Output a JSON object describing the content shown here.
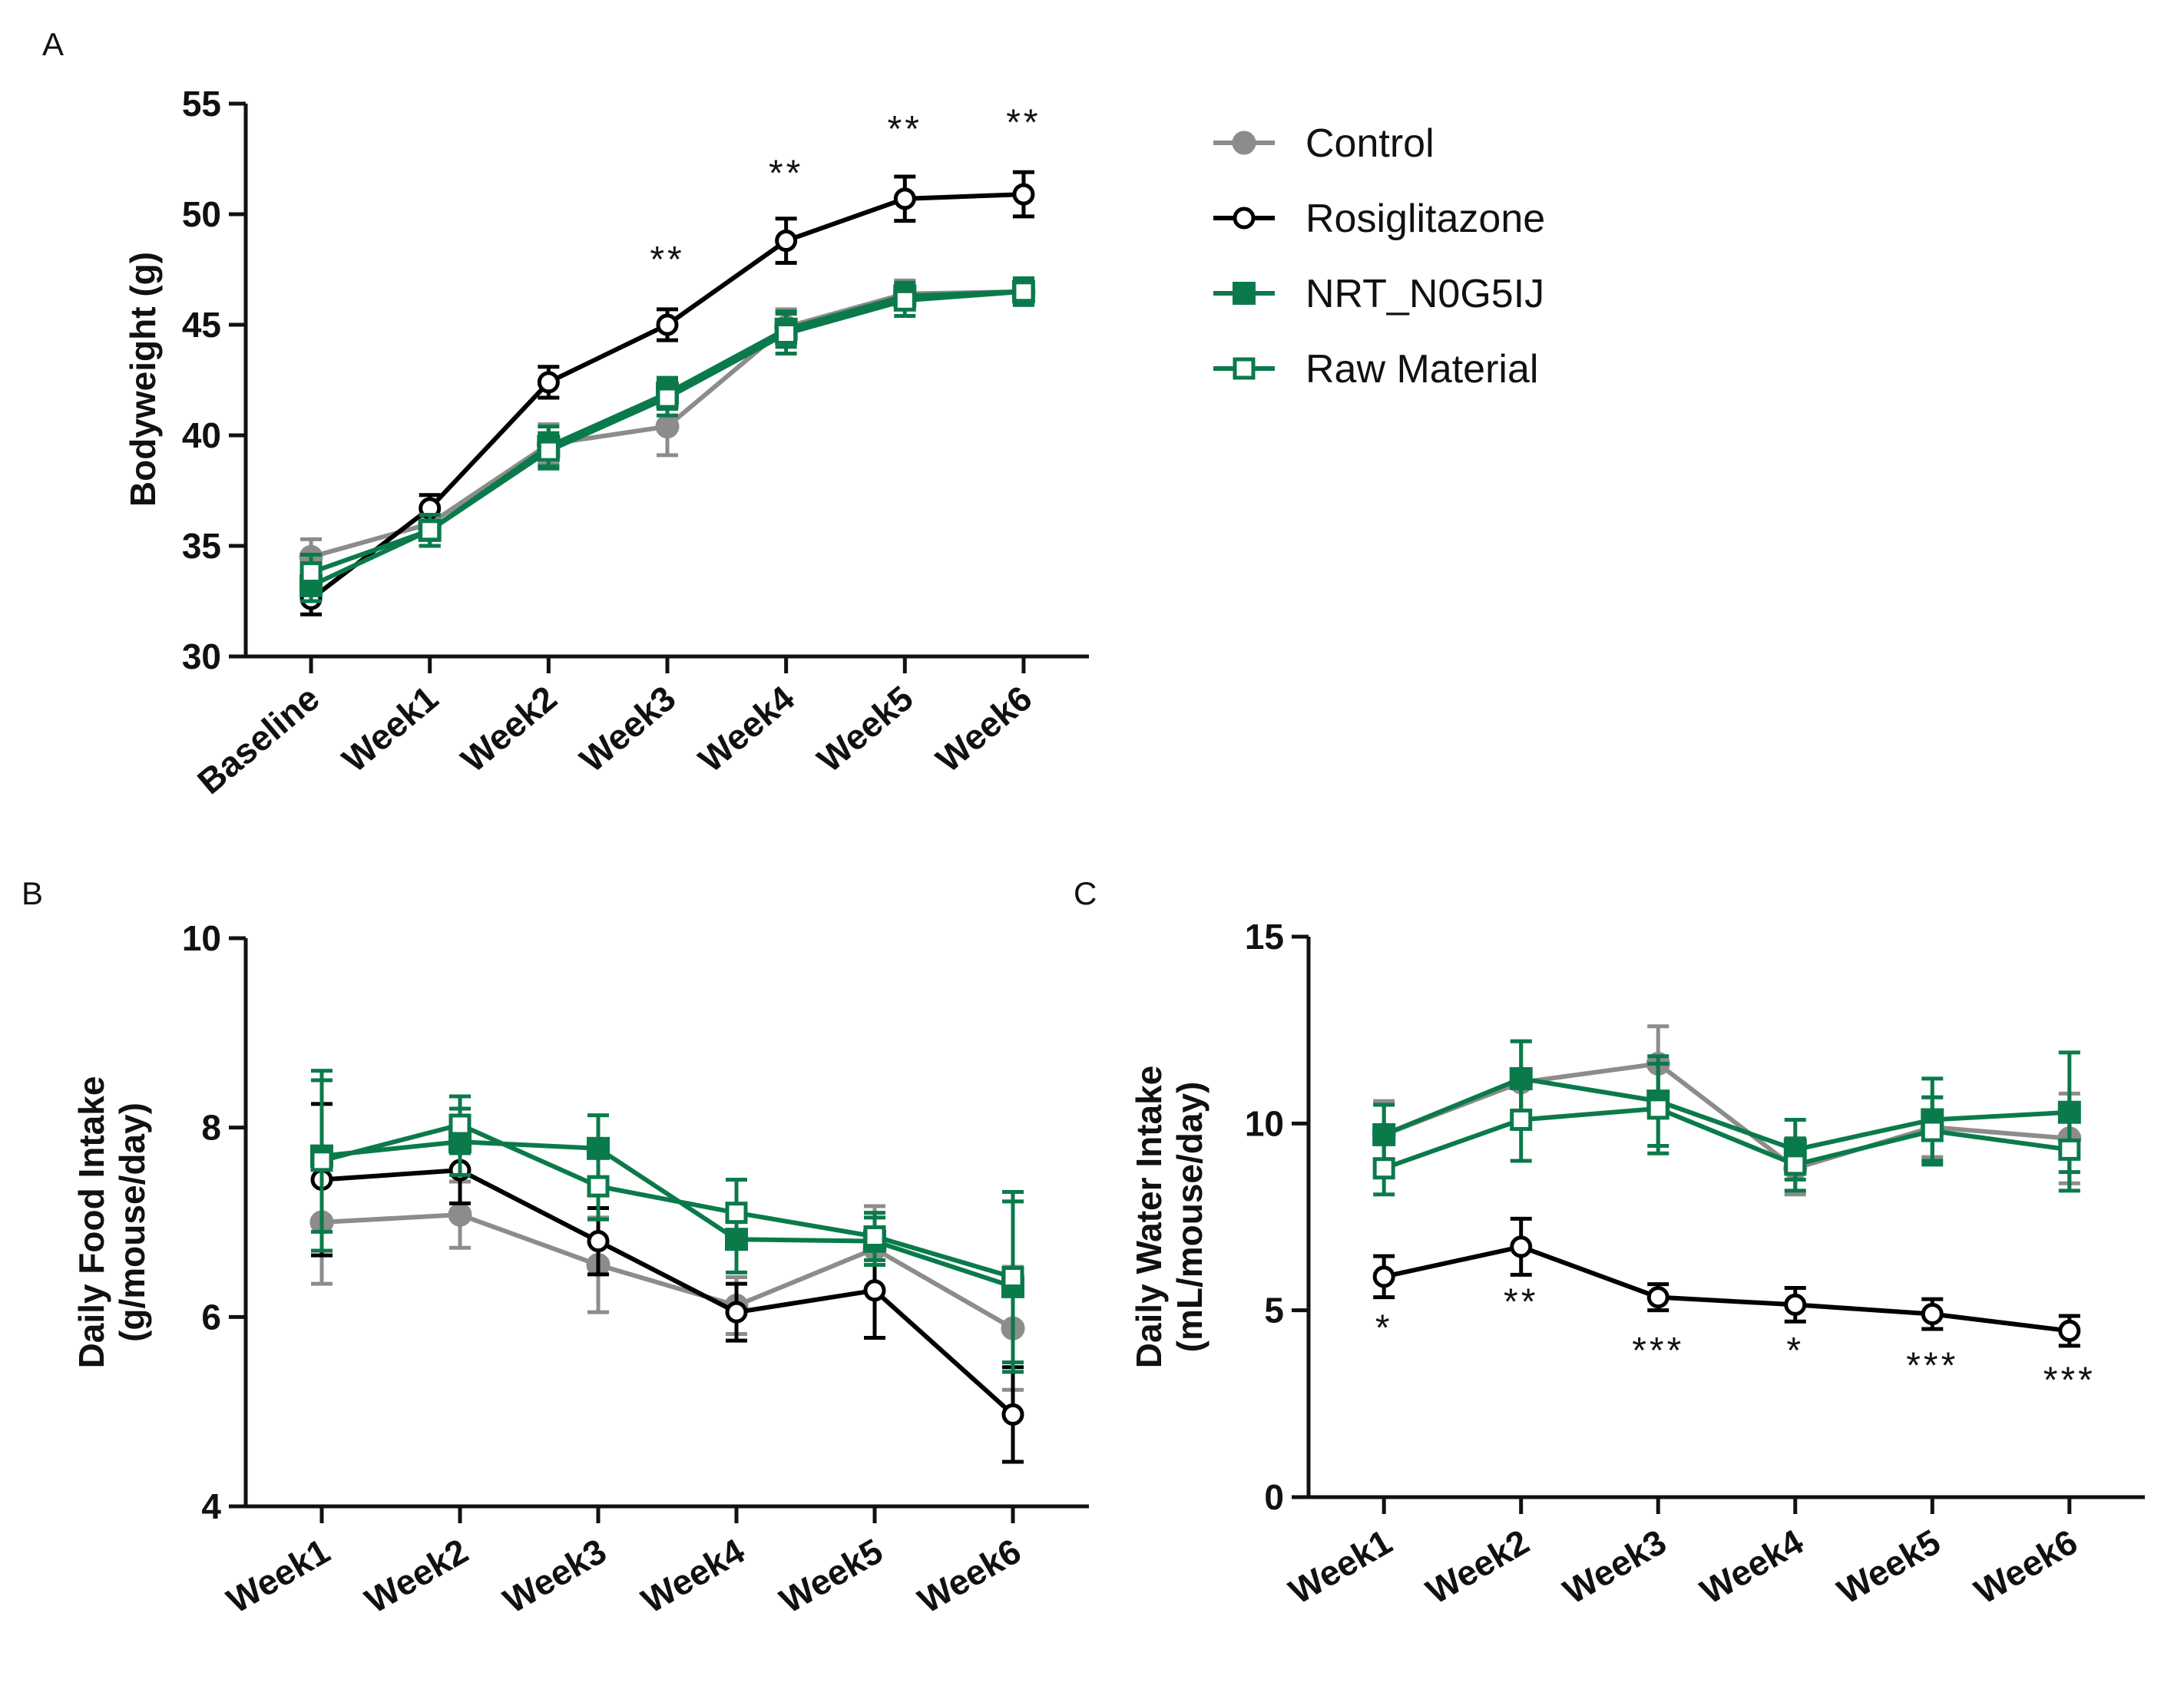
{
  "legend": [
    {
      "name": "Control",
      "color": "#8c8c8c",
      "marker": "circle-filled"
    },
    {
      "name": "Rosiglitazone",
      "color": "#000000",
      "marker": "circle-open"
    },
    {
      "name": "NRT_N0G5IJ",
      "color": "#0b7a4b",
      "marker": "square-filled"
    },
    {
      "name": "Raw Material",
      "color": "#0b7a4b",
      "marker": "square-open"
    }
  ],
  "chart_data": [
    {
      "panel": "A",
      "type": "line",
      "ylabel": "Bodyweight (g)",
      "xlabel": "",
      "ylim": [
        30,
        55
      ],
      "yticks": [
        30,
        35,
        40,
        45,
        50,
        55
      ],
      "categories": [
        "Baseline",
        "Week1",
        "Week2",
        "Week3",
        "Week4",
        "Week5",
        "Week6"
      ],
      "series": [
        {
          "name": "Control",
          "values": [
            34.5,
            36.0,
            39.6,
            40.4,
            44.9,
            46.4,
            46.5
          ],
          "errors": [
            0.8,
            0.6,
            0.9,
            1.3,
            0.8,
            0.6,
            0.6
          ]
        },
        {
          "name": "Rosiglitazone",
          "values": [
            32.6,
            36.7,
            42.4,
            45.0,
            48.8,
            50.7,
            50.9
          ],
          "errors": [
            0.7,
            0.6,
            0.7,
            0.7,
            1.0,
            1.0,
            1.0
          ]
        },
        {
          "name": "NRT_N0G5IJ",
          "values": [
            33.2,
            35.7,
            39.5,
            41.9,
            44.8,
            46.3,
            46.5
          ],
          "errors": [
            0.7,
            0.7,
            0.9,
            0.7,
            0.8,
            0.6,
            0.6
          ]
        },
        {
          "name": "Raw Material",
          "values": [
            33.8,
            35.7,
            39.3,
            41.7,
            44.6,
            46.1,
            46.5
          ],
          "errors": [
            0.8,
            0.7,
            0.8,
            0.8,
            0.9,
            0.7,
            0.6
          ]
        }
      ],
      "annotations": [
        {
          "category": "Week3",
          "text": "**",
          "y": 47.4
        },
        {
          "category": "Week4",
          "text": "**",
          "y": 51.3
        },
        {
          "category": "Week5",
          "text": "**",
          "y": 53.3
        },
        {
          "category": "Week6",
          "text": "**",
          "y": 53.6
        }
      ]
    },
    {
      "panel": "B",
      "type": "line",
      "ylabel": "Daily Food Intake",
      "ylabel2": "(g/mouse/day)",
      "xlabel": "",
      "ylim": [
        4,
        10
      ],
      "yticks": [
        4,
        6,
        8,
        10
      ],
      "categories": [
        "Week1",
        "Week2",
        "Week3",
        "Week4",
        "Week5",
        "Week6"
      ],
      "series": [
        {
          "name": "Control",
          "values": [
            7.0,
            7.08,
            6.55,
            6.12,
            6.72,
            5.88
          ],
          "errors": [
            0.65,
            0.35,
            0.5,
            0.3,
            0.45,
            0.65
          ]
        },
        {
          "name": "Rosiglitazone",
          "values": [
            7.45,
            7.55,
            6.8,
            6.05,
            6.28,
            4.97
          ],
          "errors": [
            0.8,
            0.35,
            0.35,
            0.3,
            0.5,
            0.5
          ]
        },
        {
          "name": "NRT_N0G5IJ",
          "values": [
            7.7,
            7.85,
            7.78,
            6.82,
            6.8,
            6.32
          ],
          "errors": [
            0.8,
            0.35,
            0.35,
            0.35,
            0.25,
            0.9
          ]
        },
        {
          "name": "Raw Material",
          "values": [
            7.65,
            8.03,
            7.38,
            7.1,
            6.85,
            6.42
          ],
          "errors": [
            0.95,
            0.3,
            0.35,
            0.35,
            0.25,
            0.9
          ]
        }
      ]
    },
    {
      "panel": "C",
      "type": "line",
      "ylabel": "Daily Water Intake",
      "ylabel2": "(mL/mouse/day)",
      "xlabel": "",
      "ylim": [
        0,
        15
      ],
      "yticks": [
        0,
        5,
        10,
        15
      ],
      "categories": [
        "Week1",
        "Week2",
        "Week3",
        "Week4",
        "Week5",
        "Week6"
      ],
      "series": [
        {
          "name": "Control",
          "values": [
            9.7,
            11.1,
            11.6,
            8.8,
            9.9,
            9.6
          ],
          "errors": [
            0.9,
            1.1,
            1.0,
            0.7,
            0.8,
            1.2
          ]
        },
        {
          "name": "Rosiglitazone",
          "values": [
            5.9,
            6.7,
            5.35,
            5.15,
            4.9,
            4.45
          ],
          "errors": [
            0.55,
            0.75,
            0.35,
            0.45,
            0.4,
            0.4
          ]
        },
        {
          "name": "NRT_N0G5IJ",
          "values": [
            9.7,
            11.2,
            10.6,
            9.3,
            10.1,
            10.3
          ],
          "errors": [
            0.8,
            1.0,
            1.2,
            0.8,
            1.1,
            1.6
          ]
        },
        {
          "name": "Raw Material",
          "values": [
            8.8,
            10.1,
            10.4,
            8.9,
            9.8,
            9.3
          ],
          "errors": [
            0.7,
            1.1,
            1.2,
            0.7,
            0.9,
            1.1
          ]
        }
      ],
      "annotations": [
        {
          "category": "Week1",
          "text": "*",
          "y": 4.2
        },
        {
          "category": "Week2",
          "text": "**",
          "y": 4.9
        },
        {
          "category": "Week3",
          "text": "***",
          "y": 3.6
        },
        {
          "category": "Week4",
          "text": "*",
          "y": 3.6
        },
        {
          "category": "Week5",
          "text": "***",
          "y": 3.2
        },
        {
          "category": "Week6",
          "text": "***",
          "y": 2.8
        }
      ]
    }
  ]
}
